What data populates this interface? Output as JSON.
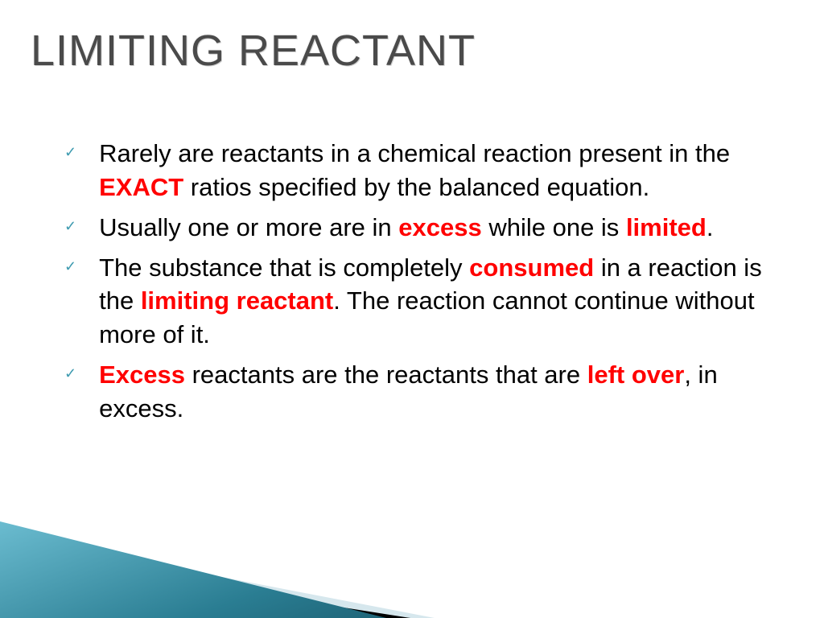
{
  "title": "LIMITING REACTANT",
  "colors": {
    "highlight": "#ff0000",
    "checkmark": "#3e9bb0",
    "title": "#4a4a4a",
    "text": "#000000",
    "tri_light": "#d6e7ed",
    "tri_black": "#000000",
    "tri_teal_top": "#6bbcd0",
    "tri_teal_bottom": "#1f6578"
  },
  "typography": {
    "title_fontsize": 54,
    "body_fontsize": 31,
    "font_family": "Trebuchet MS"
  },
  "bullets": [
    {
      "segments": [
        {
          "text": "Rarely are reactants in a chemical reaction present in the ",
          "style": "plain"
        },
        {
          "text": "EXACT",
          "style": "red-bold"
        },
        {
          "text": " ratios specified by the balanced equation.",
          "style": "plain"
        }
      ]
    },
    {
      "segments": [
        {
          "text": "Usually one or more are in ",
          "style": "plain"
        },
        {
          "text": "excess",
          "style": "red-bold"
        },
        {
          "text": " while one is ",
          "style": "plain"
        },
        {
          "text": "limited",
          "style": "red-bold"
        },
        {
          "text": ".",
          "style": "plain"
        }
      ]
    },
    {
      "segments": [
        {
          "text": "The substance that is completely ",
          "style": "plain"
        },
        {
          "text": "consumed",
          "style": "red-bold"
        },
        {
          "text": " in a reaction is the ",
          "style": "plain"
        },
        {
          "text": "limiting reactant",
          "style": "red-bold"
        },
        {
          "text": ".  The reaction cannot continue without more of it.",
          "style": "plain"
        }
      ]
    },
    {
      "segments": [
        {
          "text": "Excess",
          "style": "red-bold"
        },
        {
          "text": " reactants are the reactants that are ",
          "style": "plain"
        },
        {
          "text": "left over",
          "style": "red-bold"
        },
        {
          "text": ", in excess.",
          "style": "plain"
        }
      ]
    }
  ]
}
